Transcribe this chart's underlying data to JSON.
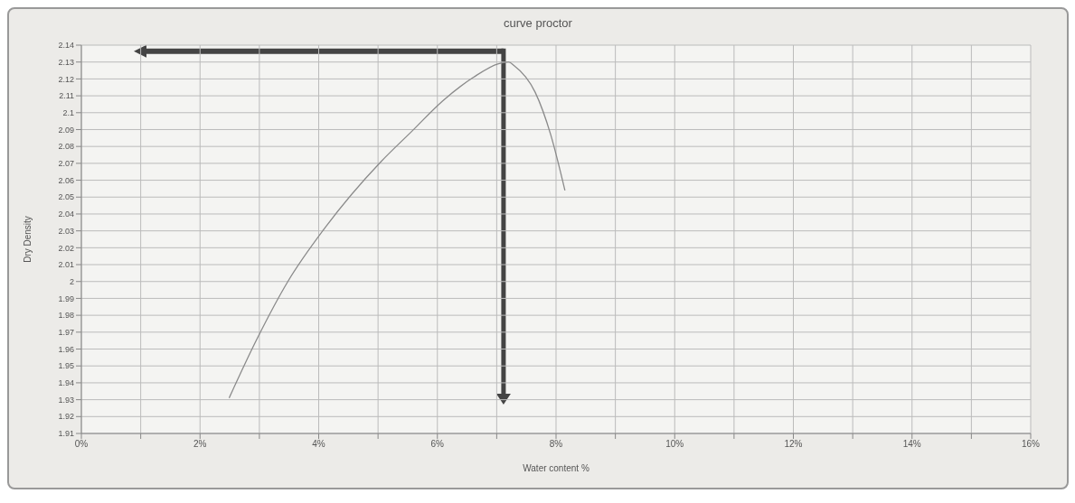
{
  "chart_data": {
    "type": "line",
    "title": "curve proctor",
    "xlabel": "Water content %",
    "ylabel": "Dry Density",
    "series": [
      {
        "color": "#8a8a8a",
        "x": [
          2.49,
          2.96,
          3.48,
          4.11,
          5.05,
          5.57,
          6.09,
          6.61,
          7.03,
          7.2,
          7.29,
          7.65,
          7.91,
          8.15
        ],
        "values": [
          1.931,
          1.966,
          2.0,
          2.032,
          2.071,
          2.089,
          2.107,
          2.121,
          2.129,
          2.13,
          2.128,
          2.112,
          2.087,
          2.054
        ]
      }
    ],
    "xlim": [
      0,
      16
    ],
    "xticks": [
      {
        "value": 0,
        "label": "0%"
      },
      {
        "value": 1,
        "label": null
      },
      {
        "value": 2,
        "label": "2%"
      },
      {
        "value": 3,
        "label": null
      },
      {
        "value": 4,
        "label": "4%"
      },
      {
        "value": 5,
        "label": null
      },
      {
        "value": 6,
        "label": "6%"
      },
      {
        "value": 7,
        "label": null
      },
      {
        "value": 8,
        "label": "8%"
      },
      {
        "value": 9,
        "label": null
      },
      {
        "value": 10,
        "label": "10%"
      },
      {
        "value": 11,
        "label": null
      },
      {
        "value": 12,
        "label": "12%"
      },
      {
        "value": 13,
        "label": null
      },
      {
        "value": 14,
        "label": "14%"
      },
      {
        "value": 15,
        "label": null
      },
      {
        "value": 16,
        "label": "16%"
      }
    ],
    "ylim": [
      1.91,
      2.14
    ],
    "yticks": [
      1.91,
      1.92,
      1.93,
      1.94,
      1.95,
      1.96,
      1.97,
      1.98,
      1.99,
      2,
      2.01,
      2.02,
      2.03,
      2.04,
      2.05,
      2.06,
      2.07,
      2.08,
      2.09,
      2.1,
      2.11,
      2.12,
      2.13,
      2.14
    ],
    "grid": true,
    "marker": "none",
    "line_style": "solid"
  }
}
